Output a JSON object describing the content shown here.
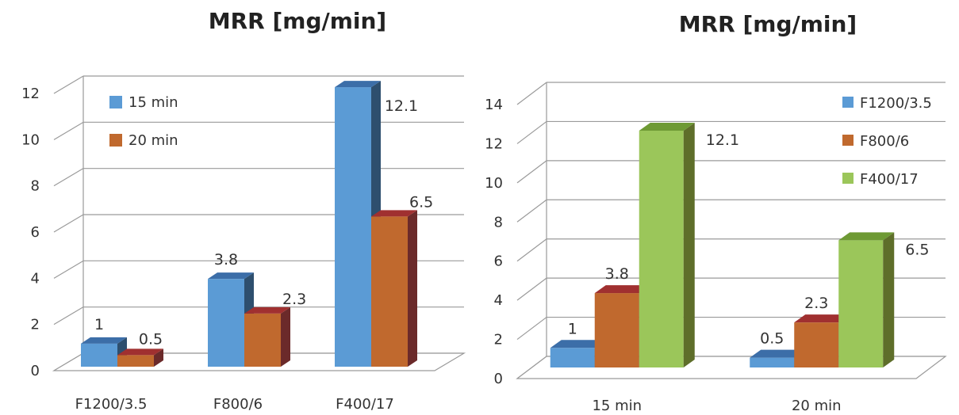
{
  "chart_data": [
    {
      "type": "bar",
      "title": "MRR [mg/min]",
      "categories": [
        "F1200/3.5",
        "F800/6",
        "F400/17"
      ],
      "series": [
        {
          "name": "15 min",
          "values": [
            1,
            3.8,
            12.1
          ],
          "color": "#5B9BD5",
          "side_color": "#2E4F6E",
          "top_color": "#3C6EA8"
        },
        {
          "name": "20 min",
          "values": [
            0.5,
            2.3,
            6.5
          ],
          "color": "#C0692E",
          "side_color": "#6B2A2A",
          "top_color": "#A03030"
        }
      ],
      "data_labels": [
        [
          "1",
          "3.8",
          "12.1"
        ],
        [
          "0.5",
          "2.3",
          "6.5"
        ]
      ],
      "ylim": [
        0,
        12
      ],
      "yticks": [
        "0",
        "2",
        "4",
        "6",
        "8",
        "10",
        "12"
      ],
      "grid": true,
      "legend": "top-left"
    },
    {
      "type": "bar",
      "title": "MRR [mg/min]",
      "categories": [
        "15 min",
        "20 min"
      ],
      "series": [
        {
          "name": "F1200/3.5",
          "values": [
            1,
            0.5
          ],
          "color": "#5B9BD5",
          "side_color": "#2E4F6E",
          "top_color": "#3C6EA8"
        },
        {
          "name": "F800/6",
          "values": [
            3.8,
            2.3
          ],
          "color": "#C0692E",
          "side_color": "#6B2A2A",
          "top_color": "#A03030"
        },
        {
          "name": "F400/17",
          "values": [
            12.1,
            6.5
          ],
          "color": "#9BC65A",
          "side_color": "#5E6E2A",
          "top_color": "#6E9A34"
        }
      ],
      "data_labels": [
        [
          "1",
          "0.5"
        ],
        [
          "3.8",
          "2.3"
        ],
        [
          "12.1",
          "6.5"
        ]
      ],
      "ylim": [
        0,
        14
      ],
      "yticks": [
        "0",
        "2",
        "4",
        "6",
        "8",
        "10",
        "12",
        "14"
      ],
      "grid": true,
      "legend": "top-right"
    }
  ]
}
